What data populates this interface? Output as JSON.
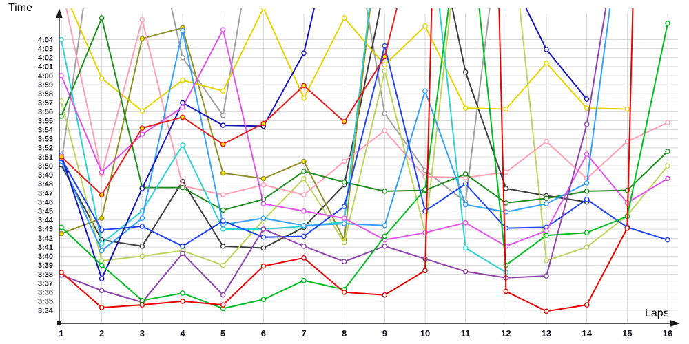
{
  "chart": {
    "y_axis_title": "Time",
    "x_axis_title": "Laps"
  },
  "chart_data": {
    "type": "line",
    "title": "",
    "xlabel": "Laps",
    "ylabel": "Time",
    "grid": true,
    "legend": "none",
    "x": [
      1,
      2,
      3,
      4,
      5,
      6,
      7,
      8,
      9,
      10,
      11,
      12,
      13,
      14,
      15,
      16
    ],
    "x_tick_labels": [
      "1",
      "2",
      "3",
      "4",
      "5",
      "6",
      "7",
      "8",
      "9",
      "10",
      "11",
      "12",
      "13",
      "14",
      "15",
      "16"
    ],
    "y_tick_labels": [
      "3:34",
      "3:35",
      "3:36",
      "3:37",
      "3:38",
      "3:39",
      "3:40",
      "3:41",
      "3:42",
      "3:43",
      "3:44",
      "3:45",
      "3:46",
      "3:47",
      "3:48",
      "3:49",
      "3:50",
      "3:51",
      "3:52",
      "3:53",
      "3:54",
      "3:55",
      "3:56",
      "3:57",
      "3:58",
      "3:59",
      "4:00",
      "4:01",
      "4:02",
      "4:03",
      "4:04"
    ],
    "y_unit": "minutes:seconds, values stored as seconds past 3:00",
    "ylim_seconds": [
      214,
      244
    ],
    "note": "values above 247 are off the top of the plot (clipped spikes)",
    "series": [
      {
        "name": "gray",
        "color": "#a0a0a0",
        "marker_fill": "#ffffff",
        "values": [
          230.3,
          262,
          262,
          242.0,
          235.6,
          262,
          262,
          262,
          235.8,
          229.5,
          226.0,
          262,
          null,
          null,
          null,
          null
        ]
      },
      {
        "name": "black",
        "color": "#3c3c3c",
        "marker_fill": "#ffffff",
        "values": [
          230.1,
          221.8,
          221.1,
          228.3,
          221.1,
          220.9,
          223.2,
          227.9,
          250,
          262,
          240.4,
          227.5,
          226.7,
          226.0,
          null,
          null
        ]
      },
      {
        "name": "khaki",
        "color": "#8f8f2a",
        "marker_fill": "#ffe600",
        "values": [
          222.5,
          224.2,
          244.1,
          245.3,
          229.2,
          228.6,
          230.5,
          221.8,
          262,
          null,
          null,
          null,
          null,
          null,
          null,
          null
        ]
      },
      {
        "name": "yellow",
        "color": "#e3d400",
        "marker_fill": "#ffffff",
        "values": [
          250,
          239.7,
          236.1,
          239.5,
          238.3,
          247.5,
          237.5,
          246.4,
          241.2,
          245.5,
          236.4,
          236.3,
          241.4,
          236.4,
          236.3,
          null
        ]
      },
      {
        "name": "yellow-green",
        "color": "#bcd35f",
        "marker_fill": "#ffffff",
        "values": [
          237.2,
          219.5,
          220.0,
          220.6,
          219.0,
          224.0,
          228.6,
          221.5,
          240.5,
          222.6,
          262,
          262,
          219.5,
          221.0,
          224.5,
          230.0
        ]
      },
      {
        "name": "pink",
        "color": "#ff9fb4",
        "marker_fill": "#ffffff",
        "values": [
          250,
          229.1,
          246.2,
          227.8,
          226.8,
          227.9,
          226.8,
          230.5,
          233.9,
          228.8,
          228.7,
          229.3,
          232.7,
          228.6,
          232.7,
          234.8
        ]
      },
      {
        "name": "dark-green",
        "color": "#1e8c1e",
        "marker_fill": "#ffffff",
        "values": [
          235.5,
          246.4,
          227.6,
          227.6,
          225.1,
          226.3,
          229.4,
          228.2,
          227.2,
          227.3,
          229.1,
          225.9,
          226.4,
          227.2,
          227.3,
          231.6
        ]
      },
      {
        "name": "cyan",
        "color": "#2fd0d0",
        "marker_fill": "#ffffff",
        "values": [
          244.0,
          221.4,
          225.0,
          232.3,
          223.0,
          223.0,
          223.3,
          223.8,
          262,
          262,
          220.9,
          218.2,
          null,
          null,
          null,
          null
        ]
      },
      {
        "name": "sky-blue",
        "color": "#33a1fd",
        "marker_fill": "#ffffff",
        "values": [
          230.5,
          220.6,
          224.2,
          245.0,
          223.5,
          224.2,
          223.4,
          223.6,
          223.4,
          238.3,
          225.7,
          224.9,
          225.8,
          228.1,
          262,
          null
        ]
      },
      {
        "name": "navy",
        "color": "#1414b8",
        "marker_fill": "#ffffff",
        "values": [
          231.2,
          217.5,
          227.5,
          237.0,
          234.5,
          234.4,
          242.5,
          262,
          null,
          null,
          null,
          252,
          242.9,
          237.4,
          null,
          null
        ]
      },
      {
        "name": "royal-blue",
        "color": "#2244ee",
        "marker_fill": "#ffffff",
        "values": [
          230.8,
          222.9,
          223.3,
          221.1,
          223.9,
          222.1,
          222.2,
          225.5,
          243.3,
          225.0,
          228.0,
          223.1,
          223.2,
          226.3,
          223.2,
          221.8
        ]
      },
      {
        "name": "magenta",
        "color": "#e054e8",
        "marker_fill": "#ffffff",
        "values": [
          240.0,
          229.3,
          233.5,
          236.5,
          245.1,
          225.8,
          225.0,
          224.2,
          221.8,
          222.6,
          223.7,
          221.1,
          222.8,
          231.3,
          225.9,
          228.6
        ]
      },
      {
        "name": "purple",
        "color": "#8d44a8",
        "marker_fill": "#ffffff",
        "values": [
          217.9,
          216.2,
          214.9,
          220.3,
          215.7,
          223.0,
          221.1,
          219.4,
          221.1,
          219.7,
          218.3,
          217.6,
          217.8,
          234.6,
          262,
          null
        ]
      },
      {
        "name": "green",
        "color": "#00bb22",
        "marker_fill": "#ffffff",
        "values": [
          223.2,
          219.0,
          215.1,
          215.9,
          214.2,
          215.2,
          217.3,
          216.3,
          222.2,
          227.4,
          262,
          219.0,
          222.3,
          222.6,
          224.4,
          245.8
        ]
      },
      {
        "name": "red-upper",
        "color": "#e02020",
        "marker_fill": "#ffe600",
        "values": [
          231.0,
          226.8,
          234.2,
          235.4,
          232.4,
          234.7,
          238.9,
          234.9,
          242.1,
          260,
          null,
          null,
          null,
          null,
          null,
          null
        ]
      },
      {
        "name": "red",
        "color": "#e60000",
        "marker_fill": "#ffffff",
        "values": [
          218.2,
          214.3,
          214.6,
          215.0,
          214.6,
          218.9,
          219.8,
          216.0,
          215.7,
          218.4,
          400,
          216.1,
          213.9,
          214.6,
          223.1,
          400
        ]
      }
    ]
  }
}
